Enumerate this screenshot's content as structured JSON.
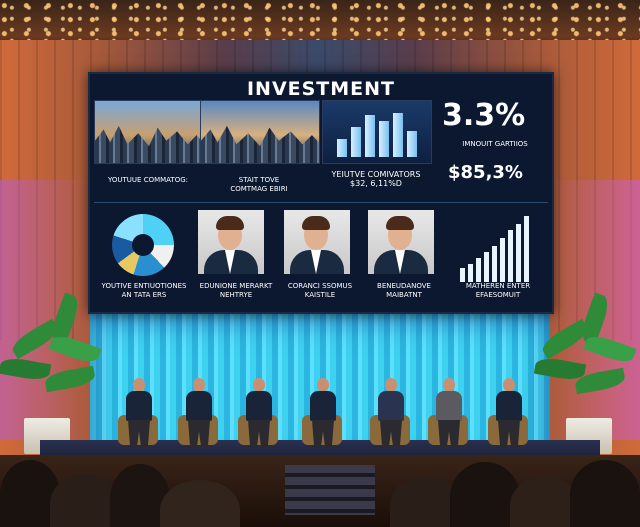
{
  "screen": {
    "title": "INVESTMENT",
    "stat_big": "3.3%",
    "stat_big_caption": "IMNOUIT GARTIIOS",
    "stat_second": "$85,3%",
    "top_captions": [
      "YOUTUUE COMMATOG:",
      "STAIT TOVE\nCOMTMAG EBIRI",
      "YEIUTVE COMIVATORS\n$32, 6,11%D"
    ],
    "bottom_captions": [
      "YOUTIVE ENTIUOTIONES\nAN TATA ERS",
      "EDUNIONE MERARKT\nNEHTRYE",
      "CORANCI SSOMUS\nKAISTILE",
      "BENEUDANOVE\nMAIBATNT",
      "MATHEREN ENTER\nEFAESOMUIT"
    ]
  },
  "colors": {
    "screen_bg": "#0c1830",
    "curtain": "#3fd1f0",
    "wall_warm": "#d06a3a"
  }
}
